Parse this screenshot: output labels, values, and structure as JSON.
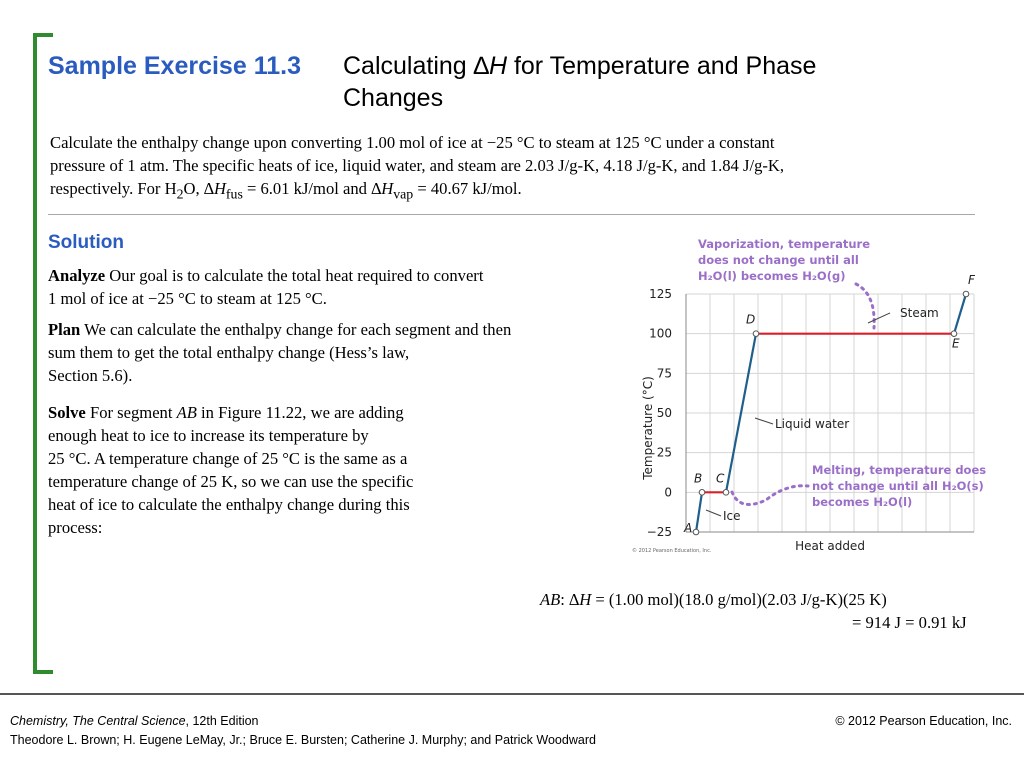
{
  "title": {
    "prefix": "Sample Exercise 11.3",
    "calc_word": "Calculating ",
    "delta": "∆",
    "h": "H",
    "rest_line1": " for Temperature and Phase",
    "rest_line2": "Changes"
  },
  "problem": {
    "line1": "Calculate the enthalpy change upon converting 1.00 mol of ice at −25 °C to steam at 125 °C under a constant",
    "line2": "pressure of 1 atm. The specific heats of ice, liquid water, and steam are 2.03 J/g-K, 4.18 J/g-K, and 1.84 J/g-K,",
    "line3_a": "respectively. For H",
    "sub_2": "2",
    "line3_b": "O, ∆",
    "h": "H",
    "sub_fus": "fus",
    "line3_c": " = 6.01 kJ/mol and ∆",
    "sub_vap": "vap",
    "line3_d": " = 40.67 kJ/mol."
  },
  "solution_heading": "Solution",
  "analyze": {
    "label": "Analyze",
    "line1": " Our goal is to calculate the total heat required to convert",
    "line2": "1 mol of ice at −25 °C to steam at 125 °C."
  },
  "plan": {
    "label": "Plan",
    "line1": " We can calculate the enthalpy change for each segment and then",
    "line2": "sum them to get the total enthalpy change (Hess’s law,",
    "line3": "Section 5.6)."
  },
  "solve": {
    "label": "Solve",
    "line1_a": "  For segment ",
    "line1_ab": "AB",
    "line1_b": " in Figure 11.22, we are adding",
    "line2": "enough heat to ice to increase its temperature by",
    "line3": "25 °C. A temperature change of 25 °C is  the same as a",
    "line4": "temperature change of 25 K, so we can use the specific",
    "line5": "heat of ice to calculate the enthalpy change during this",
    "line6": "process:"
  },
  "equation": {
    "ab": "AB",
    "colon_delta": ": ∆",
    "h": "H",
    "rhs": " = (1.00 mol)(18.0 g/mol)(2.03 J/g-K)(25 K)",
    "line2": "= 914 J = 0.91 kJ"
  },
  "chart_data": {
    "type": "line",
    "title": "",
    "xlabel": "Heat added",
    "ylabel": "Temperature (°C)",
    "yticks": [
      125,
      100,
      75,
      50,
      25,
      0,
      -25
    ],
    "ylim": [
      -25,
      125
    ],
    "grid": true,
    "points": [
      {
        "label": "A",
        "x": 0,
        "y": -25
      },
      {
        "label": "B",
        "x": 1,
        "y": 0
      },
      {
        "label": "C",
        "x": 5,
        "y": 0
      },
      {
        "label": "D",
        "x": 10,
        "y": 100
      },
      {
        "label": "E",
        "x": 43,
        "y": 100
      },
      {
        "label": "F",
        "x": 45,
        "y": 125
      }
    ],
    "annotations": {
      "vap_line1": "Vaporization, temperature",
      "vap_line2": "does not change until all",
      "vap_line3": "H₂O(l) becomes H₂O(g)",
      "melt_line1": "Melting, temperature does",
      "melt_line2": "not change until all H₂O(s)",
      "melt_line3": "becomes H₂O(l)",
      "steam": "Steam",
      "liquid_water": "Liquid water",
      "ice": "Ice",
      "credit": "© 2012 Pearson Education, Inc."
    },
    "colors": {
      "heating": "#1f5f8b",
      "phase_change": "#d6202a",
      "callout": "#9b6fc8",
      "grid": "#d4d4d4"
    }
  },
  "footer": {
    "book": "Chemistry, The Central Science",
    "edition": ", 12th Edition",
    "authors": "Theodore L. Brown; H. Eugene LeMay, Jr.; Bruce E. Bursten; Catherine J. Murphy; and Patrick Woodward",
    "copyright": "© 2012 Pearson Education, Inc."
  }
}
